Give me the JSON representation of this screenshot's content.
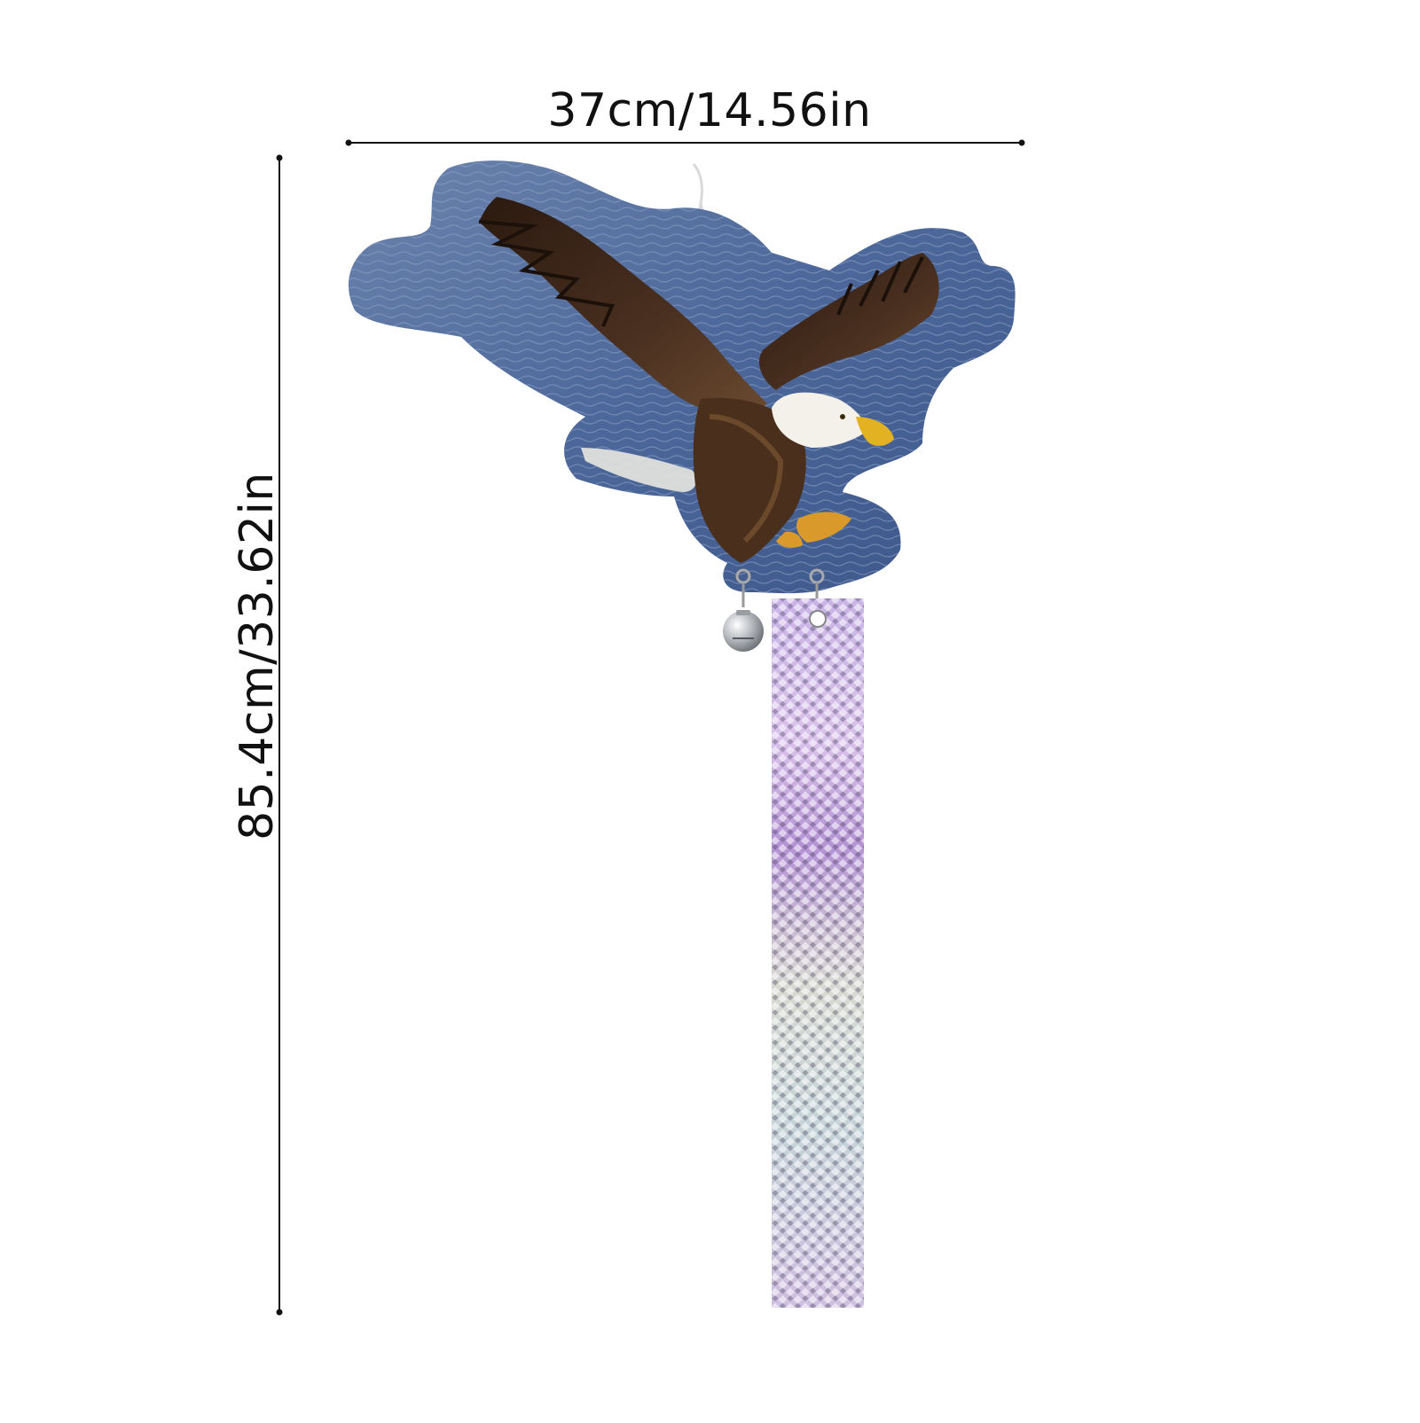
{
  "dimensions": {
    "width_text": "37cm/14.56in",
    "height_text": "85.4cm/33.62in"
  },
  "product": {
    "image_subject": "eagle-bird-deterrent-reflective-ornament",
    "colors": {
      "water": "#4f6a9a",
      "eagle_brown": "#3a2516",
      "eagle_head": "#f4f1ea",
      "beak": "#e2b223",
      "strip_purple": "#b99ed6",
      "strip_silver": "#cfd3d8"
    }
  }
}
